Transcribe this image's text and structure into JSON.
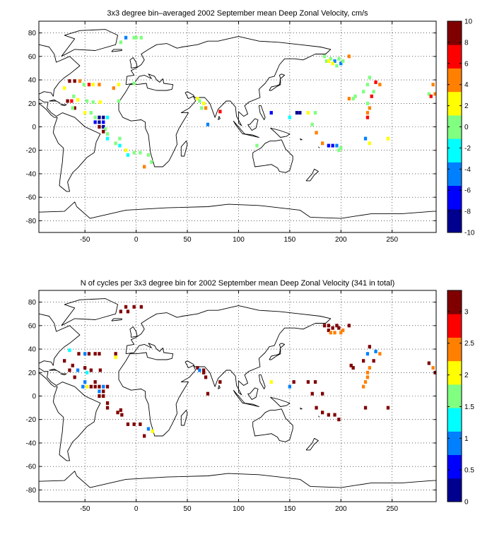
{
  "colormap": [
    "#00008f",
    "#0000ff",
    "#0080ff",
    "#00ffff",
    "#80ff80",
    "#ffff00",
    "#ff8000",
    "#ff0000",
    "#800000"
  ],
  "chart_data": [
    {
      "type": "heatmap",
      "title": "3x3 degree bin–averaged 2002 September mean Deep Zonal Velocity, cm/s",
      "xlim": [
        -95,
        293
      ],
      "ylim": [
        -90,
        90
      ],
      "xticks": [
        -50,
        0,
        50,
        100,
        150,
        200,
        250
      ],
      "yticks": [
        -80,
        -60,
        -40,
        -20,
        0,
        20,
        40,
        60,
        80
      ],
      "grid": true,
      "colorbar": {
        "min": -10,
        "max": 10,
        "ticks": [
          -10,
          -8,
          -6,
          -4,
          -2,
          0,
          2,
          4,
          6,
          8,
          10
        ]
      },
      "cells": [
        [
          -10,
          76,
          -4
        ],
        [
          -2,
          76,
          0
        ],
        [
          0,
          76,
          -1
        ],
        [
          5,
          76,
          -1
        ],
        [
          -15,
          72,
          0
        ],
        [
          -65,
          39,
          9
        ],
        [
          -60,
          39,
          9
        ],
        [
          -55,
          39,
          4
        ],
        [
          -51,
          36,
          0
        ],
        [
          -46,
          36,
          7
        ],
        [
          -42,
          36,
          2
        ],
        [
          -36,
          36,
          5
        ],
        [
          -17,
          36,
          3
        ],
        [
          -2,
          37,
          -1
        ],
        [
          -70,
          33,
          3
        ],
        [
          -22,
          33,
          4
        ],
        [
          -61,
          26,
          -1
        ],
        [
          -67,
          22,
          10
        ],
        [
          -63,
          22,
          7
        ],
        [
          -57,
          23,
          2
        ],
        [
          -48,
          22,
          0
        ],
        [
          -42,
          21,
          1
        ],
        [
          -35,
          21,
          3
        ],
        [
          -17,
          22,
          0
        ],
        [
          -60,
          16,
          8
        ],
        [
          -62,
          16,
          1
        ],
        [
          -50,
          12,
          2
        ],
        [
          -44,
          12,
          1
        ],
        [
          -40,
          8,
          -1
        ],
        [
          -36,
          8,
          -9
        ],
        [
          -32,
          8,
          -10
        ],
        [
          -28,
          8,
          -3
        ],
        [
          -40,
          4,
          -6
        ],
        [
          -36,
          4,
          -8
        ],
        [
          -32,
          4,
          -6
        ],
        [
          -36,
          0,
          10
        ],
        [
          -32,
          0,
          -10
        ],
        [
          -30,
          -2,
          0
        ],
        [
          -32,
          -4,
          9
        ],
        [
          -28,
          -6,
          0
        ],
        [
          -28,
          -10,
          -2
        ],
        [
          -16,
          -10,
          1
        ],
        [
          -20,
          -14,
          -1
        ],
        [
          -16,
          -16,
          -2
        ],
        [
          -10,
          -20,
          2
        ],
        [
          -8,
          -24,
          -2
        ],
        [
          -2,
          -22,
          0
        ],
        [
          4,
          -22,
          -1
        ],
        [
          12,
          -24,
          1
        ],
        [
          8,
          -34,
          4
        ],
        [
          15,
          -30,
          1
        ],
        [
          60,
          24,
          2
        ],
        [
          62,
          22,
          -1
        ],
        [
          66,
          20,
          2
        ],
        [
          64,
          16,
          0
        ],
        [
          68,
          16,
          5
        ],
        [
          82,
          13,
          7
        ],
        [
          70,
          2,
          -4
        ],
        [
          132,
          12,
          -7
        ],
        [
          157,
          12,
          -9
        ],
        [
          160,
          12,
          -8
        ],
        [
          150,
          8,
          -2
        ],
        [
          168,
          12,
          2
        ],
        [
          175,
          12,
          0
        ],
        [
          172,
          2,
          -1
        ],
        [
          176,
          -5,
          4
        ],
        [
          118,
          -16,
          -1
        ],
        [
          182,
          -14,
          5
        ],
        [
          188,
          -16,
          -7
        ],
        [
          192,
          -16,
          -6
        ],
        [
          196,
          -16,
          -4
        ],
        [
          200,
          -18,
          -1
        ],
        [
          198,
          -20,
          -1
        ],
        [
          224,
          -10,
          -4
        ],
        [
          246,
          -10,
          2
        ],
        [
          228,
          -14,
          2
        ],
        [
          184,
          60,
          0
        ],
        [
          186,
          56,
          1
        ],
        [
          190,
          58,
          -1
        ],
        [
          188,
          56,
          2
        ],
        [
          198,
          58,
          -1
        ],
        [
          194,
          56,
          -4
        ],
        [
          192,
          54,
          2
        ],
        [
          196,
          52,
          0
        ],
        [
          200,
          54,
          -4
        ],
        [
          202,
          56,
          0
        ],
        [
          208,
          60,
          4
        ],
        [
          228,
          42,
          0
        ],
        [
          226,
          36,
          1
        ],
        [
          234,
          38,
          7
        ],
        [
          238,
          36,
          4
        ],
        [
          222,
          30,
          0
        ],
        [
          214,
          26,
          -1
        ],
        [
          208,
          24,
          4
        ],
        [
          212,
          24,
          0
        ],
        [
          230,
          26,
          6
        ],
        [
          232,
          30,
          1
        ],
        [
          226,
          20,
          -1
        ],
        [
          228,
          16,
          5
        ],
        [
          226,
          12,
          5
        ],
        [
          226,
          8,
          6
        ],
        [
          286,
          28,
          -1
        ],
        [
          288,
          26,
          6
        ],
        [
          290,
          36,
          5
        ],
        [
          292,
          28,
          4
        ]
      ]
    },
    {
      "type": "heatmap",
      "title": "N of cycles per 3x3 degree bin for 2002 September mean Deep Zonal Velocity (341 in total)",
      "xlim": [
        -95,
        293
      ],
      "ylim": [
        -90,
        90
      ],
      "xticks": [
        -50,
        0,
        50,
        100,
        150,
        200,
        250
      ],
      "yticks": [
        -80,
        -60,
        -40,
        -20,
        0,
        20,
        40,
        60,
        80
      ],
      "grid": true,
      "colorbar": {
        "min": 0,
        "max": 3.333,
        "ticks": [
          0,
          0.5,
          1,
          1.5,
          2,
          2.5,
          3
        ]
      },
      "cells": [
        [
          -10,
          76,
          3.3
        ],
        [
          -8,
          72,
          3.3
        ],
        [
          -2,
          76,
          3.3
        ],
        [
          5,
          76,
          3.3
        ],
        [
          -15,
          72,
          3.3
        ],
        [
          -65,
          39,
          1.2
        ],
        [
          -56,
          36,
          3.3
        ],
        [
          -50,
          36,
          1.1
        ],
        [
          -46,
          36,
          3.3
        ],
        [
          -40,
          36,
          3.3
        ],
        [
          -36,
          36,
          3.3
        ],
        [
          -20,
          36,
          3.3
        ],
        [
          -70,
          30,
          3.3
        ],
        [
          -20,
          33,
          2.2
        ],
        [
          -62,
          26,
          3.3
        ],
        [
          -50,
          24,
          3.3
        ],
        [
          -65,
          22,
          3.3
        ],
        [
          -57,
          22,
          1.1
        ],
        [
          -44,
          22,
          3.3
        ],
        [
          -48,
          20,
          1.2
        ],
        [
          -35,
          22,
          3.3
        ],
        [
          -60,
          16,
          3.3
        ],
        [
          -50,
          12,
          1.1
        ],
        [
          -40,
          12,
          3.3
        ],
        [
          -52,
          8,
          1.1
        ],
        [
          -48,
          8,
          2.2
        ],
        [
          -44,
          8,
          3.3
        ],
        [
          -40,
          8,
          3.3
        ],
        [
          -36,
          8,
          3.3
        ],
        [
          -32,
          8,
          1.1
        ],
        [
          -28,
          8,
          3.3
        ],
        [
          -36,
          4,
          1.1
        ],
        [
          -32,
          4,
          3.3
        ],
        [
          -36,
          0,
          3.3
        ],
        [
          -32,
          0,
          3.3
        ],
        [
          -28,
          -6,
          3.3
        ],
        [
          -28,
          -10,
          3.3
        ],
        [
          -15,
          -12,
          3.3
        ],
        [
          -18,
          -14,
          3.3
        ],
        [
          -14,
          -16,
          3.3
        ],
        [
          -8,
          -24,
          3.3
        ],
        [
          -2,
          -24,
          3.3
        ],
        [
          4,
          -24,
          3.3
        ],
        [
          12,
          -28,
          1.1
        ],
        [
          8,
          -34,
          3.3
        ],
        [
          16,
          -30,
          2.2
        ],
        [
          60,
          24,
          3.3
        ],
        [
          62,
          22,
          1.1
        ],
        [
          66,
          22,
          3.3
        ],
        [
          66,
          20,
          3.3
        ],
        [
          68,
          16,
          3.3
        ],
        [
          82,
          12,
          3.3
        ],
        [
          70,
          2,
          3.3
        ],
        [
          132,
          12,
          2.2
        ],
        [
          150,
          8,
          1.1
        ],
        [
          154,
          12,
          3.3
        ],
        [
          168,
          12,
          3.3
        ],
        [
          175,
          12,
          3.3
        ],
        [
          172,
          2,
          3.3
        ],
        [
          182,
          2,
          3.3
        ],
        [
          176,
          -10,
          3.3
        ],
        [
          182,
          -14,
          3.3
        ],
        [
          188,
          -16,
          3.3
        ],
        [
          194,
          -16,
          3.3
        ],
        [
          198,
          -20,
          3.3
        ],
        [
          224,
          -10,
          3.3
        ],
        [
          246,
          -10,
          3.3
        ],
        [
          184,
          60,
          3.3
        ],
        [
          188,
          60,
          3.3
        ],
        [
          192,
          58,
          3.3
        ],
        [
          196,
          60,
          3.3
        ],
        [
          188,
          56,
          3.3
        ],
        [
          190,
          54,
          2.3
        ],
        [
          194,
          54,
          2.3
        ],
        [
          200,
          54,
          2.3
        ],
        [
          198,
          58,
          3.3
        ],
        [
          202,
          56,
          2.3
        ],
        [
          208,
          60,
          3.3
        ],
        [
          228,
          42,
          3.3
        ],
        [
          226,
          36,
          1.1
        ],
        [
          234,
          38,
          1.1
        ],
        [
          238,
          36,
          2.3
        ],
        [
          232,
          30,
          3.3
        ],
        [
          222,
          30,
          3.3
        ],
        [
          212,
          24,
          3.3
        ],
        [
          210,
          26,
          3.3
        ],
        [
          228,
          24,
          2.3
        ],
        [
          226,
          20,
          2.3
        ],
        [
          226,
          16,
          2.3
        ],
        [
          224,
          12,
          2.3
        ],
        [
          222,
          8,
          2.3
        ],
        [
          286,
          28,
          3.3
        ],
        [
          290,
          24,
          2.3
        ],
        [
          292,
          20,
          3.3
        ]
      ]
    }
  ]
}
